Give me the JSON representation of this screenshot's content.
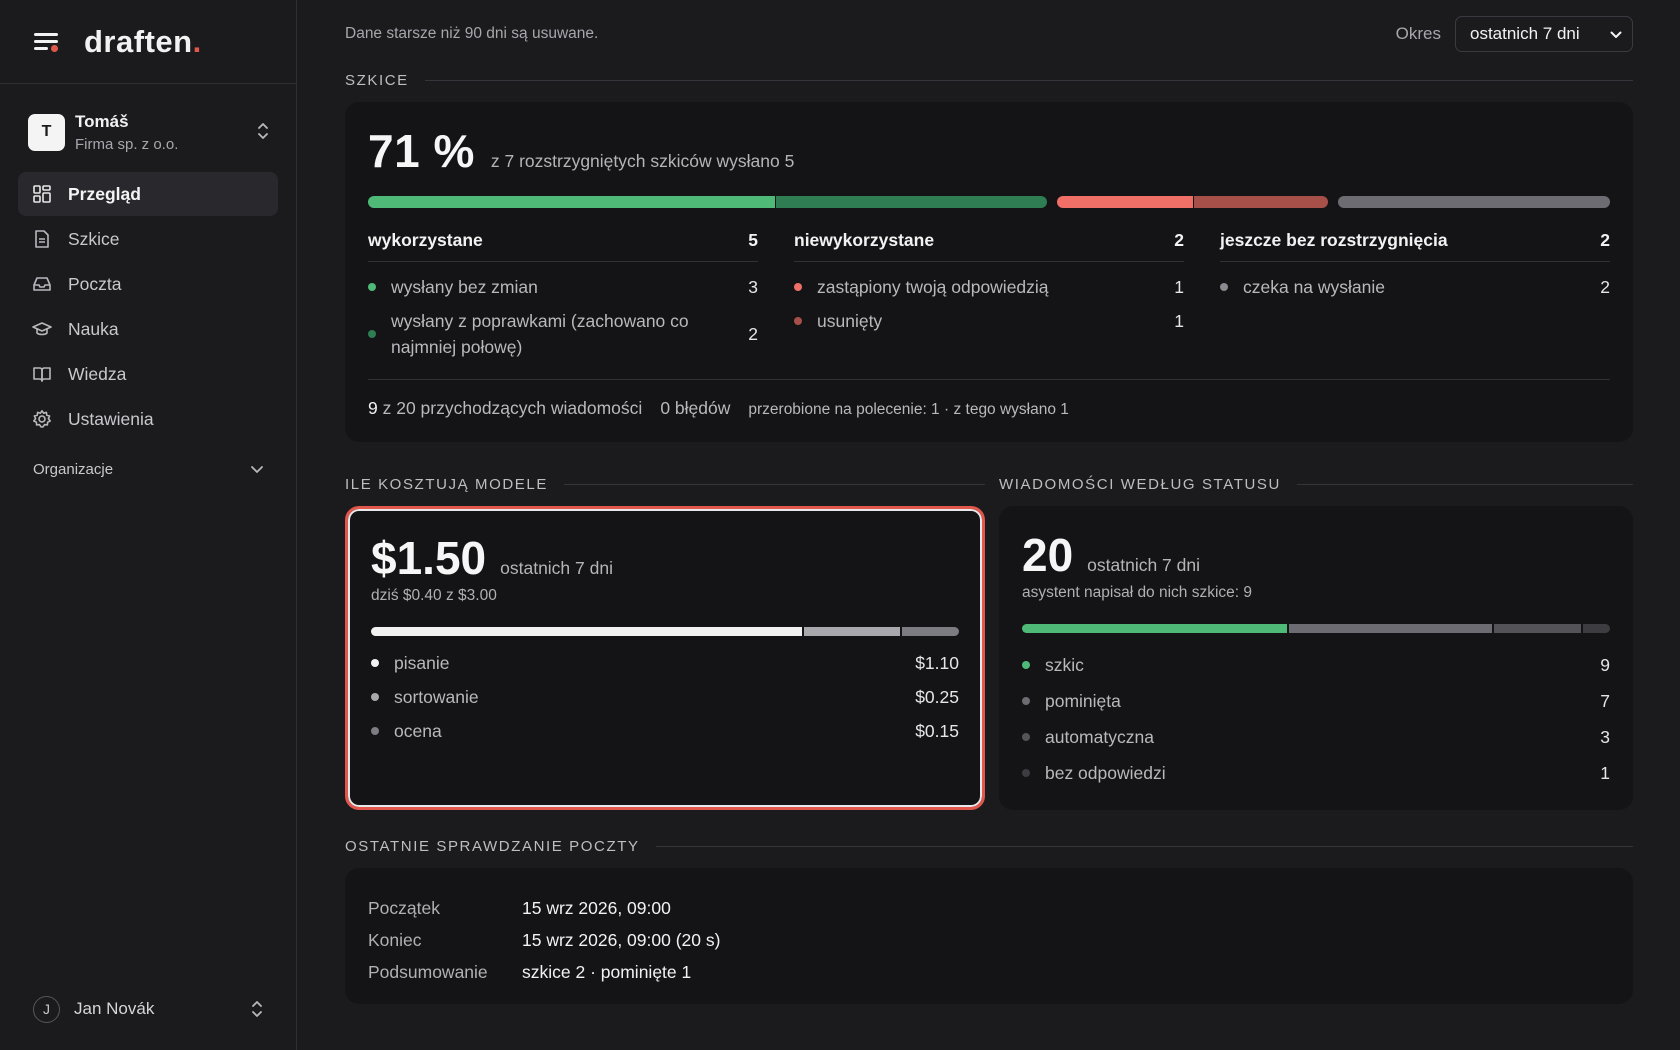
{
  "app": {
    "logo": "draften",
    "logo_dot": "."
  },
  "account": {
    "initial": "T",
    "name": "Tomáš",
    "company": "Firma sp. z o.o."
  },
  "nav": [
    {
      "label": "Przegląd",
      "icon": "dashboard-icon",
      "active": true
    },
    {
      "label": "Szkice",
      "icon": "document-icon"
    },
    {
      "label": "Poczta",
      "icon": "inbox-icon"
    },
    {
      "label": "Nauka",
      "icon": "graduation-cap-icon"
    },
    {
      "label": "Wiedza",
      "icon": "book-icon"
    },
    {
      "label": "Ustawienia",
      "icon": "gear-icon"
    }
  ],
  "organizations_label": "Organizacje",
  "user": {
    "initial": "J",
    "name": "Jan Novák"
  },
  "topbar": {
    "note": "Dane starsze niż 90 dni są usuwane.",
    "period_label": "Okres",
    "period_value": "ostatnich 7 dni"
  },
  "drafts": {
    "section_title": "SZKICE",
    "percent": "71 %",
    "summary": "z 7 rozstrzygniętych szkiców wysłano 5",
    "segments": [
      {
        "value": 3,
        "color": "#4fba78"
      },
      {
        "value": 2,
        "color": "#2f7d52"
      },
      {
        "value": 1,
        "color": "#f07067"
      },
      {
        "value": 1,
        "color": "#a7504a"
      },
      {
        "value": 2,
        "color": "#6c6c72"
      }
    ],
    "columns": [
      {
        "title": "wykorzystane",
        "total": "5",
        "rows": [
          {
            "label": "wysłany bez zmian",
            "value": "3",
            "color": "#4fba78"
          },
          {
            "label": "wysłany z poprawkami (zachowano co najmniej połowę)",
            "value": "2",
            "color": "#2f7d52"
          }
        ]
      },
      {
        "title": "niewykorzystane",
        "total": "2",
        "rows": [
          {
            "label": "zastąpiony twoją odpowiedzią",
            "value": "1",
            "color": "#f07067"
          },
          {
            "label": "usunięty",
            "value": "1",
            "color": "#a7504a"
          }
        ]
      },
      {
        "title": "jeszcze bez rozstrzygnięcia",
        "total": "2",
        "rows": [
          {
            "label": "czeka na wysłanie",
            "value": "2",
            "color": "#8a8a90"
          }
        ]
      }
    ],
    "footer": {
      "count": "9",
      "incoming": "z 20 przychodzących wiadomości",
      "errors": "0 błędów",
      "redone": "przerobione na polecenie: 1 · z tego wysłano 1"
    }
  },
  "costs": {
    "section_title": "ILE KOSZTUJĄ MODELE",
    "total": "$1.50",
    "period": "ostatnich 7 dni",
    "today": "dziś $0.40 z $3.00",
    "items": [
      {
        "label": "pisanie",
        "value": "$1.10",
        "amount": 1.1,
        "color": "#f2f2f2"
      },
      {
        "label": "sortowanie",
        "value": "$0.25",
        "amount": 0.25,
        "color": "#a8a8ad"
      },
      {
        "label": "ocena",
        "value": "$0.15",
        "amount": 0.15,
        "color": "#7c7c82"
      }
    ]
  },
  "status": {
    "section_title": "WIADOMOŚCI WEDŁUG STATUSU",
    "total": "20",
    "period": "ostatnich 7 dni",
    "subtitle": "asystent napisał do nich szkice: 9",
    "items": [
      {
        "label": "szkic",
        "value": "9",
        "amount": 9,
        "color": "#4fba78"
      },
      {
        "label": "pominięta",
        "value": "7",
        "amount": 7,
        "color": "#6c6c72"
      },
      {
        "label": "automatyczna",
        "value": "3",
        "amount": 3,
        "color": "#535358"
      },
      {
        "label": "bez odpowiedzi",
        "value": "1",
        "amount": 1,
        "color": "#3c3c41"
      }
    ]
  },
  "mail": {
    "section_title": "OSTATNIE SPRAWDZANIE POCZTY",
    "rows": [
      {
        "key": "Początek",
        "value": "15 wrz 2026, 09:00"
      },
      {
        "key": "Koniec",
        "value": "15 wrz 2026, 09:00 (20 s)"
      },
      {
        "key": "Podsumowanie",
        "value": "szkice 2 · pominięte 1"
      }
    ]
  }
}
